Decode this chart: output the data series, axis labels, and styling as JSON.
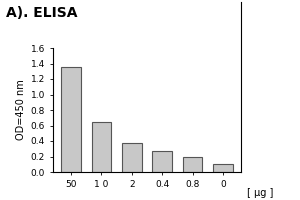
{
  "categories": [
    "50",
    "1 0",
    "2",
    "0.4",
    "0.8",
    "0"
  ],
  "values": [
    1.36,
    0.65,
    0.38,
    0.27,
    0.2,
    0.1
  ],
  "bar_color": "#c8c8c8",
  "bar_edgecolor": "#555555",
  "ylabel": "OD=450 nm",
  "xlabel": "[ μg ]",
  "ylim": [
    0,
    1.6
  ],
  "yticks": [
    0.0,
    0.2,
    0.4,
    0.6,
    0.8,
    1.0,
    1.2,
    1.4,
    1.6
  ],
  "title": "A). ELISA",
  "title_fontsize": 10,
  "title_fontweight": "bold",
  "ylabel_fontsize": 7,
  "tick_fontsize": 6.5,
  "xlabel_fontsize": 7,
  "bar_width": 0.65,
  "linewidth": 0.8
}
